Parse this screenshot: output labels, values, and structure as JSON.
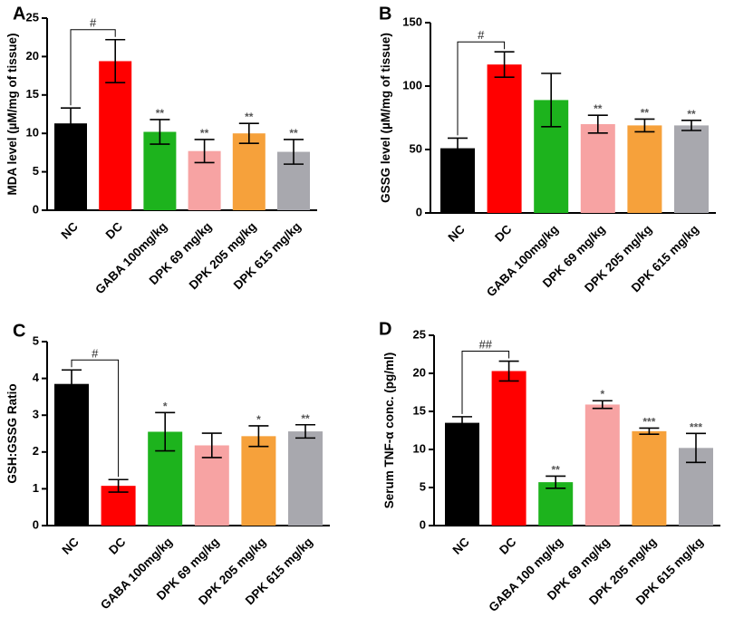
{
  "chart_data": [
    {
      "type": "bar",
      "panel_label": "A",
      "categories": [
        "NC",
        "DC",
        "GABA 100mg/kg",
        "DPK 69 mg/kg",
        "DPK 205 mg/kg",
        "DPK 615 mg/kg"
      ],
      "values": [
        11.3,
        19.4,
        10.2,
        7.7,
        10.0,
        7.6
      ],
      "errors": [
        2.0,
        2.8,
        1.6,
        1.5,
        1.3,
        1.6
      ],
      "significance": [
        "",
        "",
        "**",
        "**",
        "**",
        "**"
      ],
      "bracket_label": "#",
      "ylabel": "MDA level (µM/mg of tissue)",
      "xlabel": "",
      "ylim": [
        0,
        25
      ],
      "yticks": [
        "0",
        "5",
        "10",
        "15",
        "20",
        "25"
      ],
      "colors": [
        "#000000",
        "#ff0000",
        "#1db31d",
        "#f7a3a3",
        "#f6a13b",
        "#a8a8ae"
      ]
    },
    {
      "type": "bar",
      "panel_label": "B",
      "categories": [
        "NC",
        "DC",
        "GABA 100mg/kg",
        "DPK 69 mg/kg",
        "DPK 205 mg/kg",
        "DPK 615 mg/kg"
      ],
      "values": [
        51,
        117,
        89,
        70,
        69,
        69
      ],
      "errors": [
        8,
        10,
        21,
        7,
        5,
        4
      ],
      "significance": [
        "",
        "",
        "",
        "**",
        "**",
        "**"
      ],
      "bracket_label": "#",
      "ylabel": "GSSG level (µM/mg of tissue)",
      "xlabel": "",
      "ylim": [
        0,
        150
      ],
      "yticks": [
        "0",
        "50",
        "100",
        "150"
      ],
      "colors": [
        "#000000",
        "#ff0000",
        "#1db31d",
        "#f7a3a3",
        "#f6a13b",
        "#a8a8ae"
      ]
    },
    {
      "type": "bar",
      "panel_label": "C",
      "categories": [
        "NC",
        "DC",
        "GABA 100mg/kg",
        "DPK 69 mg/kg",
        "DPK 205 mg/kg",
        "DPK 615 mg/kg"
      ],
      "values": [
        3.85,
        1.08,
        2.55,
        2.18,
        2.43,
        2.56
      ],
      "errors": [
        0.38,
        0.17,
        0.52,
        0.33,
        0.28,
        0.18
      ],
      "significance": [
        "",
        "",
        "*",
        "",
        "*",
        "**"
      ],
      "bracket_label": "#",
      "ylabel": "GSH:GSSG Ratio",
      "xlabel": "",
      "ylim": [
        0,
        5
      ],
      "yticks": [
        "0",
        "1",
        "2",
        "3",
        "4",
        "5"
      ],
      "colors": [
        "#000000",
        "#ff0000",
        "#1db31d",
        "#f7a3a3",
        "#f6a13b",
        "#a8a8ae"
      ]
    },
    {
      "type": "bar",
      "panel_label": "D",
      "categories": [
        "NC",
        "DC",
        "GABA 100 mg/kg",
        "DPK 69 mg/kg",
        "DPK 205 mg/kg",
        "DPK 615 mg/kg"
      ],
      "values": [
        13.5,
        20.3,
        5.7,
        15.9,
        12.4,
        10.2
      ],
      "errors": [
        0.8,
        1.3,
        0.8,
        0.5,
        0.4,
        1.9
      ],
      "significance": [
        "",
        "",
        "**",
        "*",
        "***",
        "***"
      ],
      "bracket_label": "##",
      "ylabel": "Serum TNF-α conc. (pg/ml)",
      "xlabel": "",
      "ylim": [
        0,
        25
      ],
      "yticks": [
        "0",
        "5",
        "10",
        "15",
        "20",
        "25"
      ],
      "colors": [
        "#000000",
        "#ff0000",
        "#1db31d",
        "#f7a3a3",
        "#f6a13b",
        "#a8a8ae"
      ]
    }
  ]
}
